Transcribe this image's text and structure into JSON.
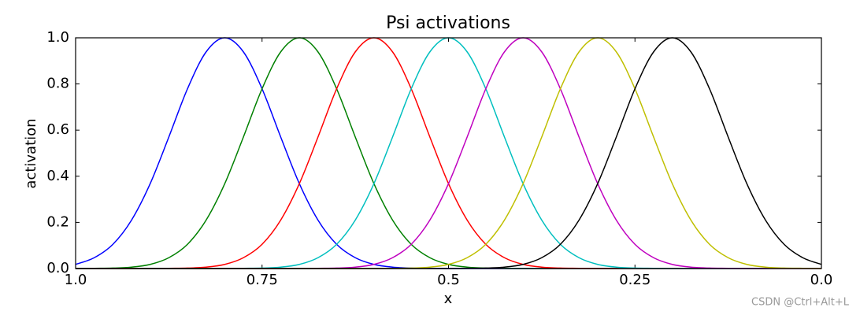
{
  "chart_data": {
    "type": "line",
    "title": "Psi activations",
    "xlabel": "x",
    "ylabel": "activation",
    "x": [
      1.0,
      0.975,
      0.95,
      0.925,
      0.9,
      0.875,
      0.85,
      0.825,
      0.8,
      0.775,
      0.75,
      0.725,
      0.7,
      0.675,
      0.65,
      0.625,
      0.6,
      0.575,
      0.55,
      0.525,
      0.5,
      0.475,
      0.45,
      0.425,
      0.4,
      0.375,
      0.35,
      0.325,
      0.3,
      0.275,
      0.25,
      0.225,
      0.2,
      0.175,
      0.15,
      0.125,
      0.1,
      0.075,
      0.05,
      0.025,
      0.0
    ],
    "series": [
      {
        "color": "#0000ff",
        "values": [
          0.018,
          0.047,
          0.105,
          0.21,
          0.368,
          0.57,
          0.779,
          0.939,
          1,
          0.939,
          0.779,
          0.57,
          0.368,
          0.21,
          0.105,
          0.047,
          0.018,
          0.006,
          0.002,
          0.001,
          0,
          0,
          0,
          0,
          0,
          0,
          0,
          0,
          0,
          0,
          0,
          0,
          0,
          0,
          0,
          0,
          0,
          0,
          0,
          0,
          0
        ]
      },
      {
        "color": "#008000",
        "values": [
          0,
          0.001,
          0.002,
          0.006,
          0.018,
          0.047,
          0.105,
          0.21,
          0.368,
          0.57,
          0.779,
          0.939,
          1,
          0.939,
          0.779,
          0.57,
          0.368,
          0.21,
          0.105,
          0.047,
          0.018,
          0.006,
          0.002,
          0.001,
          0,
          0,
          0,
          0,
          0,
          0,
          0,
          0,
          0,
          0,
          0,
          0,
          0,
          0,
          0,
          0,
          0
        ]
      },
      {
        "color": "#ff0000",
        "values": [
          0,
          0,
          0,
          0,
          0,
          0.001,
          0.002,
          0.006,
          0.018,
          0.047,
          0.105,
          0.21,
          0.368,
          0.57,
          0.779,
          0.939,
          1,
          0.939,
          0.779,
          0.57,
          0.368,
          0.21,
          0.105,
          0.047,
          0.018,
          0.006,
          0.002,
          0.001,
          0,
          0,
          0,
          0,
          0,
          0,
          0,
          0,
          0,
          0,
          0,
          0,
          0
        ]
      },
      {
        "color": "#00bfbf",
        "values": [
          0,
          0,
          0,
          0,
          0,
          0,
          0,
          0,
          0,
          0.001,
          0.002,
          0.006,
          0.018,
          0.047,
          0.105,
          0.21,
          0.368,
          0.57,
          0.779,
          0.939,
          1,
          0.939,
          0.779,
          0.57,
          0.368,
          0.21,
          0.105,
          0.047,
          0.018,
          0.006,
          0.002,
          0.001,
          0,
          0,
          0,
          0,
          0,
          0,
          0,
          0,
          0
        ]
      },
      {
        "color": "#bf00bf",
        "values": [
          0,
          0,
          0,
          0,
          0,
          0,
          0,
          0,
          0,
          0,
          0,
          0,
          0,
          0.001,
          0.002,
          0.006,
          0.018,
          0.047,
          0.105,
          0.21,
          0.368,
          0.57,
          0.779,
          0.939,
          1,
          0.939,
          0.779,
          0.57,
          0.368,
          0.21,
          0.105,
          0.047,
          0.018,
          0.006,
          0.002,
          0.001,
          0,
          0,
          0,
          0,
          0
        ]
      },
      {
        "color": "#bfbf00",
        "values": [
          0,
          0,
          0,
          0,
          0,
          0,
          0,
          0,
          0,
          0,
          0,
          0,
          0,
          0,
          0,
          0,
          0,
          0.001,
          0.002,
          0.006,
          0.018,
          0.047,
          0.105,
          0.21,
          0.368,
          0.57,
          0.779,
          0.939,
          1,
          0.939,
          0.779,
          0.57,
          0.368,
          0.21,
          0.105,
          0.047,
          0.018,
          0.006,
          0.002,
          0.001,
          0
        ]
      },
      {
        "color": "#000000",
        "values": [
          0,
          0,
          0,
          0,
          0,
          0,
          0,
          0,
          0,
          0,
          0,
          0,
          0,
          0,
          0,
          0,
          0,
          0,
          0,
          0,
          0,
          0.001,
          0.002,
          0.006,
          0.018,
          0.047,
          0.105,
          0.21,
          0.368,
          0.57,
          0.779,
          0.939,
          1,
          0.939,
          0.779,
          0.57,
          0.368,
          0.21,
          0.105,
          0.047,
          0.018
        ]
      }
    ],
    "xlim": [
      1.0,
      0.0
    ],
    "xticks": [
      {
        "value": 1.0,
        "label": "1.0"
      },
      0.75,
      0.5,
      0.25,
      {
        "value": 0.0,
        "label": "0.0"
      }
    ],
    "ylim": [
      0.0,
      1.0
    ],
    "yticks": [
      {
        "value": 0.0,
        "label": "0.0"
      },
      0.2,
      0.4,
      0.6,
      0.8,
      {
        "value": 1.0,
        "label": "1.0"
      }
    ],
    "grid": false
  },
  "watermark": "CSDN @Ctrl+Alt+L"
}
